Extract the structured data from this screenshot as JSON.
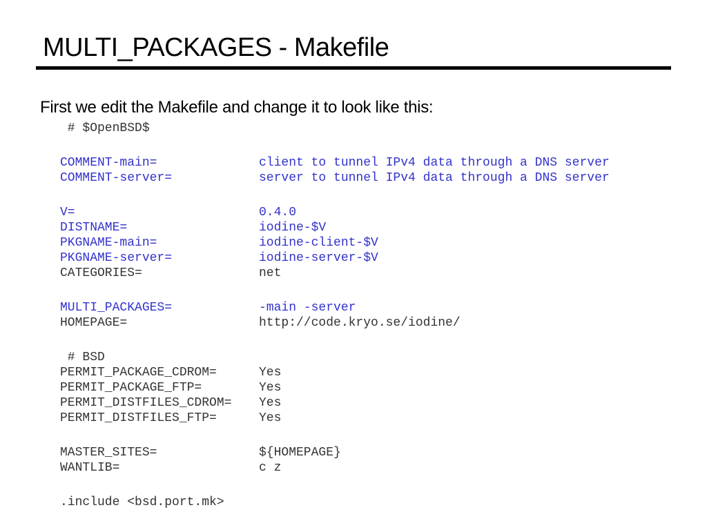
{
  "title": "MULTI_PACKAGES - Makefile",
  "intro": "First we edit the Makefile and change it to look like this:",
  "colors": {
    "highlight": "#3333cc",
    "text": "#333333"
  },
  "header_line": " # $OpenBSD$",
  "groups": [
    [
      {
        "key": "COMMENT-main=",
        "value": "client to tunnel IPv4 data through a DNS server",
        "highlight": true
      },
      {
        "key": "COMMENT-server=",
        "value": "server to tunnel IPv4 data through a DNS server",
        "highlight": true
      }
    ],
    [
      {
        "key": "V=",
        "value": "0.4.0",
        "highlight": true
      },
      {
        "key": "DISTNAME=",
        "value": "iodine-$V",
        "highlight": true
      },
      {
        "key": "PKGNAME-main=",
        "value": "iodine-client-$V",
        "highlight": true
      },
      {
        "key": "PKGNAME-server=",
        "value": "iodine-server-$V",
        "highlight": true
      },
      {
        "key": "CATEGORIES=",
        "value": "net",
        "highlight": false
      }
    ],
    [
      {
        "key": "MULTI_PACKAGES=",
        "value": "-main -server",
        "highlight": true
      },
      {
        "key": "HOMEPAGE=",
        "value": "http://code.kryo.se/iodine/",
        "highlight": false
      }
    ],
    [
      {
        "key": " # BSD",
        "value": "",
        "highlight": false
      },
      {
        "key": "PERMIT_PACKAGE_CDROM=",
        "value": "Yes",
        "highlight": false
      },
      {
        "key": "PERMIT_PACKAGE_FTP=",
        "value": "Yes",
        "highlight": false
      },
      {
        "key": "PERMIT_DISTFILES_CDROM=",
        "value": "Yes",
        "highlight": false
      },
      {
        "key": "PERMIT_DISTFILES_FTP=",
        "value": "Yes",
        "highlight": false
      }
    ],
    [
      {
        "key": "MASTER_SITES=",
        "value": "${HOMEPAGE}",
        "highlight": false
      },
      {
        "key": "WANTLIB=",
        "value": "c z",
        "highlight": false
      }
    ],
    [
      {
        "key": ".include <bsd.port.mk>",
        "value": "",
        "highlight": false
      }
    ]
  ]
}
